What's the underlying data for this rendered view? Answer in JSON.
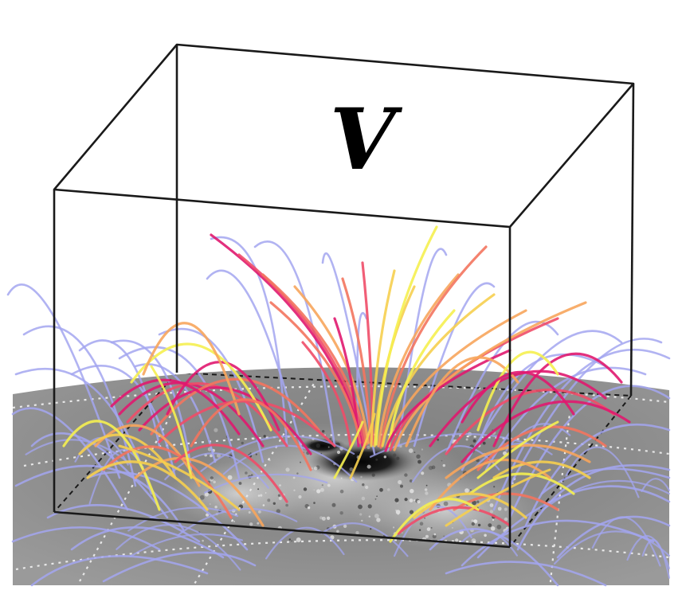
{
  "figure": {
    "volume_label": "V"
  },
  "colors": {
    "background": "#ffffff",
    "box_edges": "#1a1a1a",
    "magnetogram_base": "#8a8a8a",
    "grid_lines": "#e8e8e8",
    "open_field_lines": "#a3a6f0",
    "closed_field_lines": [
      "#e0186f",
      "#ef4c68",
      "#f3745e",
      "#f7a55c",
      "#f6cf4f",
      "#f5f050"
    ]
  },
  "legend": {
    "entries": []
  }
}
